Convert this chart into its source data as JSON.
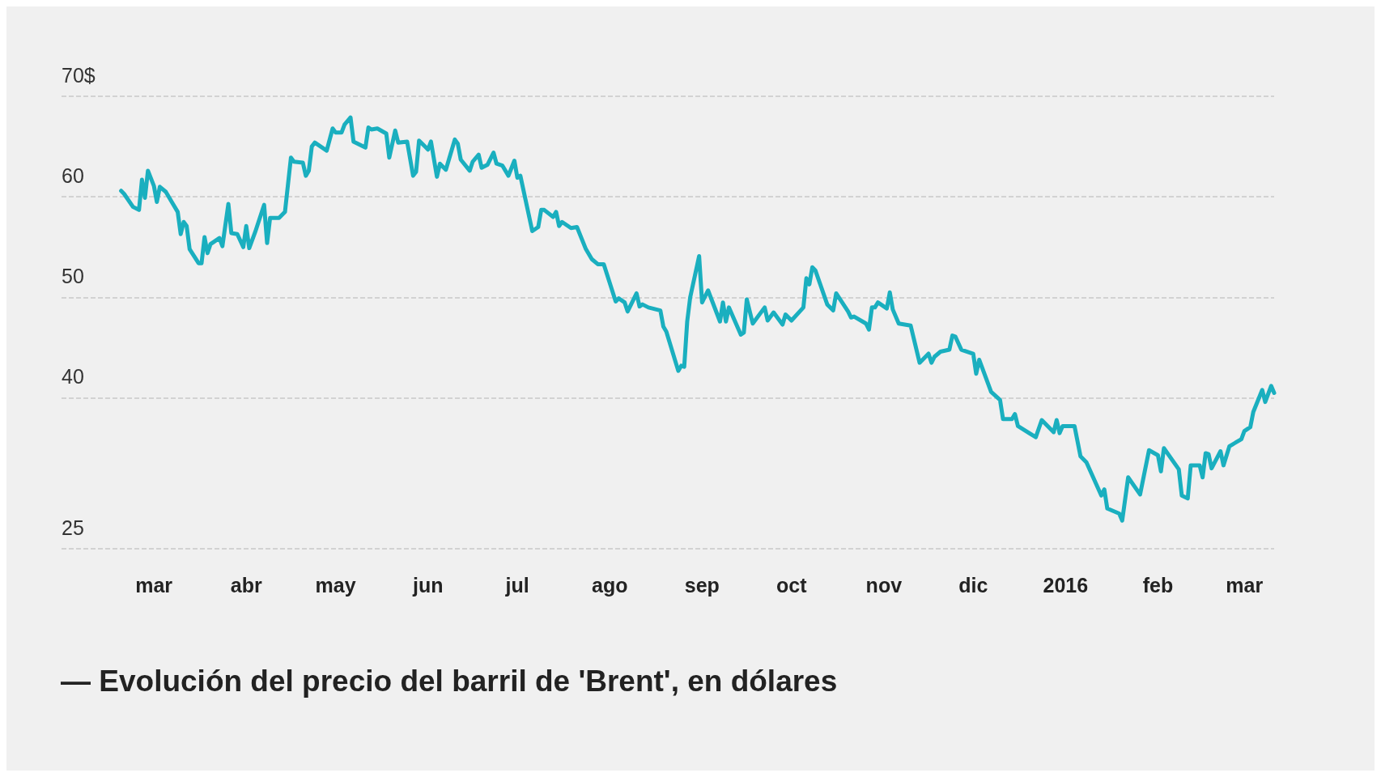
{
  "chart_data": {
    "type": "line",
    "title": "— Evolución del precio del barril de 'Brent', en dólares",
    "x": [
      "2015-02-18",
      "2015-02-19",
      "2015-02-22",
      "2015-02-24",
      "2015-02-25",
      "2015-02-26",
      "2015-02-27",
      "2015-03-01",
      "2015-03-02",
      "2015-03-03",
      "2015-03-05",
      "2015-03-07",
      "2015-03-09",
      "2015-03-10",
      "2015-03-11",
      "2015-03-12",
      "2015-03-13",
      "2015-03-16",
      "2015-03-17",
      "2015-03-18",
      "2015-03-19",
      "2015-03-20",
      "2015-03-23",
      "2015-03-24",
      "2015-03-26",
      "2015-03-27",
      "2015-03-29",
      "2015-03-31",
      "2015-04-01",
      "2015-04-02",
      "2015-04-04",
      "2015-04-07",
      "2015-04-08",
      "2015-04-09",
      "2015-04-12",
      "2015-04-14",
      "2015-04-15",
      "2015-04-16",
      "2015-04-17",
      "2015-04-20",
      "2015-04-21",
      "2015-04-22",
      "2015-04-23",
      "2015-04-24",
      "2015-04-28",
      "2015-04-30",
      "2015-05-01",
      "2015-05-03",
      "2015-05-04",
      "2015-05-06",
      "2015-05-07",
      "2015-05-11",
      "2015-05-12",
      "2015-05-13",
      "2015-05-15",
      "2015-05-18",
      "2015-05-19",
      "2015-05-21",
      "2015-05-22",
      "2015-05-25",
      "2015-05-27",
      "2015-05-28",
      "2015-05-29",
      "2015-05-31",
      "2015-06-01",
      "2015-06-02",
      "2015-06-04",
      "2015-06-05",
      "2015-06-07",
      "2015-06-10",
      "2015-06-11",
      "2015-06-12",
      "2015-06-15",
      "2015-06-16",
      "2015-06-18",
      "2015-06-19",
      "2015-06-21",
      "2015-06-23",
      "2015-06-24",
      "2015-06-26",
      "2015-06-28",
      "2015-06-30",
      "2015-07-01",
      "2015-07-02",
      "2015-07-06",
      "2015-07-08",
      "2015-07-09",
      "2015-07-10",
      "2015-07-13",
      "2015-07-14",
      "2015-07-15",
      "2015-07-16",
      "2015-07-19",
      "2015-07-21",
      "2015-07-24",
      "2015-07-26",
      "2015-07-28",
      "2015-07-30",
      "2015-08-03",
      "2015-08-04",
      "2015-08-06",
      "2015-08-07",
      "2015-08-10",
      "2015-08-11",
      "2015-08-12",
      "2015-08-14",
      "2015-08-18",
      "2015-08-19",
      "2015-08-20",
      "2015-08-24",
      "2015-08-25",
      "2015-08-26",
      "2015-08-27",
      "2015-08-28",
      "2015-08-31",
      "2015-09-01",
      "2015-09-03",
      "2015-09-07",
      "2015-09-08",
      "2015-09-09",
      "2015-09-10",
      "2015-09-14",
      "2015-09-15",
      "2015-09-16",
      "2015-09-18",
      "2015-09-22",
      "2015-09-23",
      "2015-09-25",
      "2015-09-28",
      "2015-09-29",
      "2015-10-01",
      "2015-10-05",
      "2015-10-06",
      "2015-10-07",
      "2015-10-08",
      "2015-10-09",
      "2015-10-13",
      "2015-10-15",
      "2015-10-16",
      "2015-10-20",
      "2015-10-21",
      "2015-10-22",
      "2015-10-26",
      "2015-10-27",
      "2015-10-28",
      "2015-10-29",
      "2015-10-30",
      "2015-11-02",
      "2015-11-03",
      "2015-11-04",
      "2015-11-06",
      "2015-11-10",
      "2015-11-13",
      "2015-11-16",
      "2015-11-17",
      "2015-11-18",
      "2015-11-20",
      "2015-11-23",
      "2015-11-24",
      "2015-11-25",
      "2015-11-27",
      "2015-12-01",
      "2015-12-02",
      "2015-12-03",
      "2015-12-07",
      "2015-12-10",
      "2015-12-11",
      "2015-12-14",
      "2015-12-15",
      "2015-12-16",
      "2015-12-22",
      "2015-12-24",
      "2015-12-28",
      "2015-12-29",
      "2015-12-30",
      "2015-12-31",
      "2016-01-04",
      "2016-01-06",
      "2016-01-08",
      "2016-01-13",
      "2016-01-14",
      "2016-01-15",
      "2016-01-19",
      "2016-01-20",
      "2016-01-22",
      "2016-01-26",
      "2016-01-29",
      "2016-02-01",
      "2016-02-02",
      "2016-02-03",
      "2016-02-08",
      "2016-02-09",
      "2016-02-11",
      "2016-02-12",
      "2016-02-15",
      "2016-02-16",
      "2016-02-17",
      "2016-02-18",
      "2016-02-19",
      "2016-02-22",
      "2016-02-23",
      "2016-02-25",
      "2016-02-29",
      "2016-03-01",
      "2016-03-03",
      "2016-03-04",
      "2016-03-07",
      "2016-03-08",
      "2016-03-10",
      "2016-03-11"
    ],
    "series": [
      {
        "color": "#1aafbf",
        "values": [
          60.6,
          60.3,
          59.0,
          58.7,
          61.7,
          59.9,
          62.6,
          61.1,
          59.5,
          61.0,
          60.5,
          59.5,
          58.5,
          56.3,
          57.5,
          57.1,
          54.8,
          53.4,
          53.4,
          56.0,
          54.4,
          55.3,
          55.9,
          55.1,
          59.3,
          56.4,
          56.3,
          55.0,
          57.1,
          54.9,
          56.5,
          59.2,
          55.4,
          57.9,
          57.9,
          58.5,
          61.2,
          63.9,
          63.5,
          63.4,
          62.1,
          62.6,
          65.0,
          65.4,
          64.6,
          66.8,
          66.4,
          66.4,
          67.2,
          67.9,
          65.5,
          64.9,
          66.9,
          66.7,
          66.8,
          66.3,
          63.9,
          66.6,
          65.4,
          65.5,
          62.1,
          62.5,
          65.6,
          65.0,
          64.7,
          65.5,
          62.0,
          63.3,
          62.7,
          65.7,
          65.3,
          63.7,
          62.6,
          63.5,
          64.2,
          62.9,
          63.2,
          64.4,
          63.3,
          63.1,
          62.1,
          63.6,
          61.9,
          62.1,
          56.6,
          57.0,
          58.7,
          58.7,
          58.0,
          58.5,
          57.1,
          57.5,
          56.9,
          57.0,
          54.8,
          53.8,
          53.3,
          53.3,
          49.6,
          49.9,
          49.5,
          48.6,
          50.4,
          49.1,
          49.3,
          49.0,
          48.7,
          47.1,
          46.6,
          42.7,
          43.2,
          43.1,
          47.6,
          50.0,
          54.1,
          49.5,
          50.7,
          47.6,
          49.5,
          47.6,
          49.0,
          46.3,
          46.5,
          49.8,
          47.4,
          49.0,
          47.7,
          48.5,
          47.3,
          48.3,
          47.7,
          49.0,
          51.9,
          51.3,
          53.0,
          52.7,
          49.3,
          48.7,
          50.4,
          48.6,
          48.0,
          48.1,
          47.4,
          46.8,
          49.0,
          49.0,
          49.5,
          48.9,
          50.5,
          48.8,
          47.4,
          47.2,
          43.5,
          44.4,
          43.5,
          44.1,
          44.6,
          44.8,
          46.2,
          46.1,
          44.8,
          44.4,
          42.4,
          43.8,
          40.6,
          39.8,
          37.9,
          37.9,
          38.4,
          37.2,
          36.1,
          37.8,
          36.6,
          37.8,
          36.5,
          37.2,
          37.2,
          34.2,
          33.6,
          30.3,
          30.9,
          29.0,
          28.5,
          27.8,
          32.1,
          30.4,
          34.8,
          34.3,
          32.7,
          35.0,
          32.9,
          30.3,
          30.0,
          33.3,
          33.3,
          32.1,
          34.5,
          34.4,
          33.0,
          34.7,
          33.3,
          35.2,
          35.9,
          36.7,
          37.1,
          38.6,
          40.8,
          39.6,
          41.2,
          40.5
        ]
      }
    ],
    "xlim": [
      "2015-01-29",
      "2016-03-11"
    ],
    "xticks": [
      {
        "value": "2015-03-01",
        "label": "mar"
      },
      {
        "value": "2015-04-01",
        "label": "abr"
      },
      {
        "value": "2015-05-01",
        "label": "may"
      },
      {
        "value": "2015-06-01",
        "label": "jun"
      },
      {
        "value": "2015-07-01",
        "label": "jul"
      },
      {
        "value": "2015-08-01",
        "label": "ago"
      },
      {
        "value": "2015-09-01",
        "label": "sep"
      },
      {
        "value": "2015-10-01",
        "label": "oct"
      },
      {
        "value": "2015-11-01",
        "label": "nov"
      },
      {
        "value": "2015-12-01",
        "label": "dic"
      },
      {
        "value": "2016-01-01",
        "label": "2016"
      },
      {
        "value": "2016-02-01",
        "label": "feb"
      },
      {
        "value": "2016-03-01",
        "label": "mar"
      }
    ],
    "ylim": [
      25,
      70
    ],
    "yticks": [
      25,
      40,
      50,
      60,
      {
        "value": 70,
        "label": "70$"
      }
    ],
    "grid": "y",
    "line_style": "solid",
    "marker": "none"
  }
}
